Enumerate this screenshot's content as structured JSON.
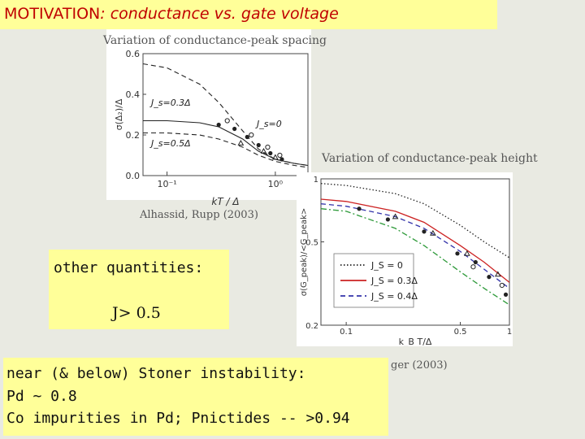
{
  "title": {
    "main": "MOTIVATION",
    "rest": ": conductance vs. gate voltage"
  },
  "left_figure": {
    "title": "Variation of conductance-peak spacing",
    "caption": "Alhassid, Rupp (2003)",
    "xlabel": "kT / Δ",
    "ylabel": "σ(Δ₂)/Δ",
    "y_ticks": [
      "0.6",
      "0.4",
      "0.2",
      "0.0"
    ],
    "x_ticks": [
      "10⁻¹",
      "10⁰"
    ],
    "annotations": [
      "J_s=0.3Δ",
      "J_s=0",
      "J_s=0.5Δ"
    ]
  },
  "right_figure": {
    "title": "Variation of conductance-peak height",
    "caption_partial": "ger (2003)",
    "xlabel": "k_B T/Δ",
    "ylabel": "σ(G_peak)/<G_peak>",
    "y_ticks": [
      "1",
      "0.5",
      "0.2"
    ],
    "x_ticks": [
      "0.1",
      "0.5",
      "1"
    ],
    "legend": [
      "J_S = 0",
      "J_S = 0.3Δ",
      "J_S = 0.4Δ"
    ]
  },
  "quantities_box": {
    "label": "other  quantities:",
    "value": "J> 0.5"
  },
  "stoner_box": {
    "line1": "near (& below) Stoner instability:",
    "line2": "Pd  ~ 0.8",
    "line3": "Co impurities in Pd; Pnictides -- >0.94"
  },
  "chart_data": [
    {
      "type": "line",
      "title": "Variation of conductance-peak spacing",
      "xlabel": "kT / Δ",
      "ylabel": "σ(Δ₂)/Δ",
      "x_scale": "log",
      "xlim": [
        0.06,
        2.0
      ],
      "ylim": [
        0.0,
        0.6
      ],
      "series": [
        {
          "name": "J_s=0",
          "style": "dashed",
          "x": [
            0.06,
            0.1,
            0.2,
            0.3,
            0.5,
            0.7,
            1.0,
            1.5,
            2.0
          ],
          "y": [
            0.55,
            0.53,
            0.45,
            0.36,
            0.22,
            0.13,
            0.08,
            0.06,
            0.05
          ]
        },
        {
          "name": "J_s=0.3Δ",
          "style": "solid",
          "x": [
            0.06,
            0.1,
            0.2,
            0.3,
            0.5,
            0.7,
            1.0,
            1.5,
            2.0
          ],
          "y": [
            0.27,
            0.27,
            0.26,
            0.24,
            0.18,
            0.12,
            0.08,
            0.06,
            0.05
          ]
        },
        {
          "name": "J_s=0.5Δ",
          "style": "dashed",
          "x": [
            0.06,
            0.1,
            0.2,
            0.3,
            0.5,
            0.7,
            1.0,
            1.5,
            2.0
          ],
          "y": [
            0.21,
            0.21,
            0.2,
            0.18,
            0.14,
            0.1,
            0.07,
            0.05,
            0.04
          ]
        }
      ],
      "points": [
        {
          "marker": "filled-circle",
          "x": [
            0.3,
            0.42,
            0.55,
            0.7,
            0.9,
            1.15
          ],
          "y": [
            0.25,
            0.23,
            0.19,
            0.15,
            0.11,
            0.08
          ]
        },
        {
          "marker": "open-circle",
          "x": [
            0.36,
            0.6,
            0.85,
            1.1
          ],
          "y": [
            0.27,
            0.2,
            0.14,
            0.1
          ]
        },
        {
          "marker": "open-triangle",
          "x": [
            0.48,
            0.78,
            1.0
          ],
          "y": [
            0.16,
            0.12,
            0.09
          ]
        }
      ]
    },
    {
      "type": "line",
      "title": "Variation of conductance-peak height",
      "xlabel": "k_B T/Δ",
      "ylabel": "σ(G_peak)/<G_peak>",
      "x_scale": "log",
      "y_scale": "log",
      "xlim": [
        0.07,
        1.0
      ],
      "ylim": [
        0.2,
        1.0
      ],
      "series": [
        {
          "name": "J_S = 0",
          "style": "dotted",
          "color": "#222222",
          "x": [
            0.07,
            0.1,
            0.2,
            0.3,
            0.5,
            0.7,
            1.0
          ],
          "y": [
            0.95,
            0.93,
            0.85,
            0.76,
            0.6,
            0.5,
            0.42
          ]
        },
        {
          "name": "J_S = 0.3Δ",
          "style": "solid",
          "color": "#cc2222",
          "x": [
            0.07,
            0.1,
            0.2,
            0.3,
            0.5,
            0.7,
            1.0
          ],
          "y": [
            0.8,
            0.78,
            0.7,
            0.62,
            0.48,
            0.4,
            0.32
          ]
        },
        {
          "name": "J_S = 0.4Δ",
          "style": "dashed",
          "color": "#3333aa",
          "x": [
            0.07,
            0.1,
            0.2,
            0.3,
            0.5,
            0.7,
            1.0
          ],
          "y": [
            0.76,
            0.74,
            0.66,
            0.58,
            0.45,
            0.37,
            0.3
          ]
        },
        {
          "style": "dash-dot",
          "color": "#2e9a3a",
          "x": [
            0.07,
            0.1,
            0.2,
            0.3,
            0.5,
            0.7,
            1.0
          ],
          "y": [
            0.72,
            0.7,
            0.58,
            0.48,
            0.36,
            0.3,
            0.25
          ]
        }
      ],
      "points": [
        {
          "marker": "filled-circle",
          "x": [
            0.12,
            0.18,
            0.3,
            0.48,
            0.62,
            0.75,
            0.95
          ],
          "y": [
            0.72,
            0.64,
            0.56,
            0.44,
            0.4,
            0.34,
            0.28
          ]
        },
        {
          "marker": "open-triangle",
          "x": [
            0.2,
            0.34,
            0.55,
            0.85
          ],
          "y": [
            0.66,
            0.55,
            0.44,
            0.35
          ]
        },
        {
          "marker": "open-circle",
          "x": [
            0.6,
            0.9
          ],
          "y": [
            0.38,
            0.31
          ]
        }
      ]
    }
  ]
}
